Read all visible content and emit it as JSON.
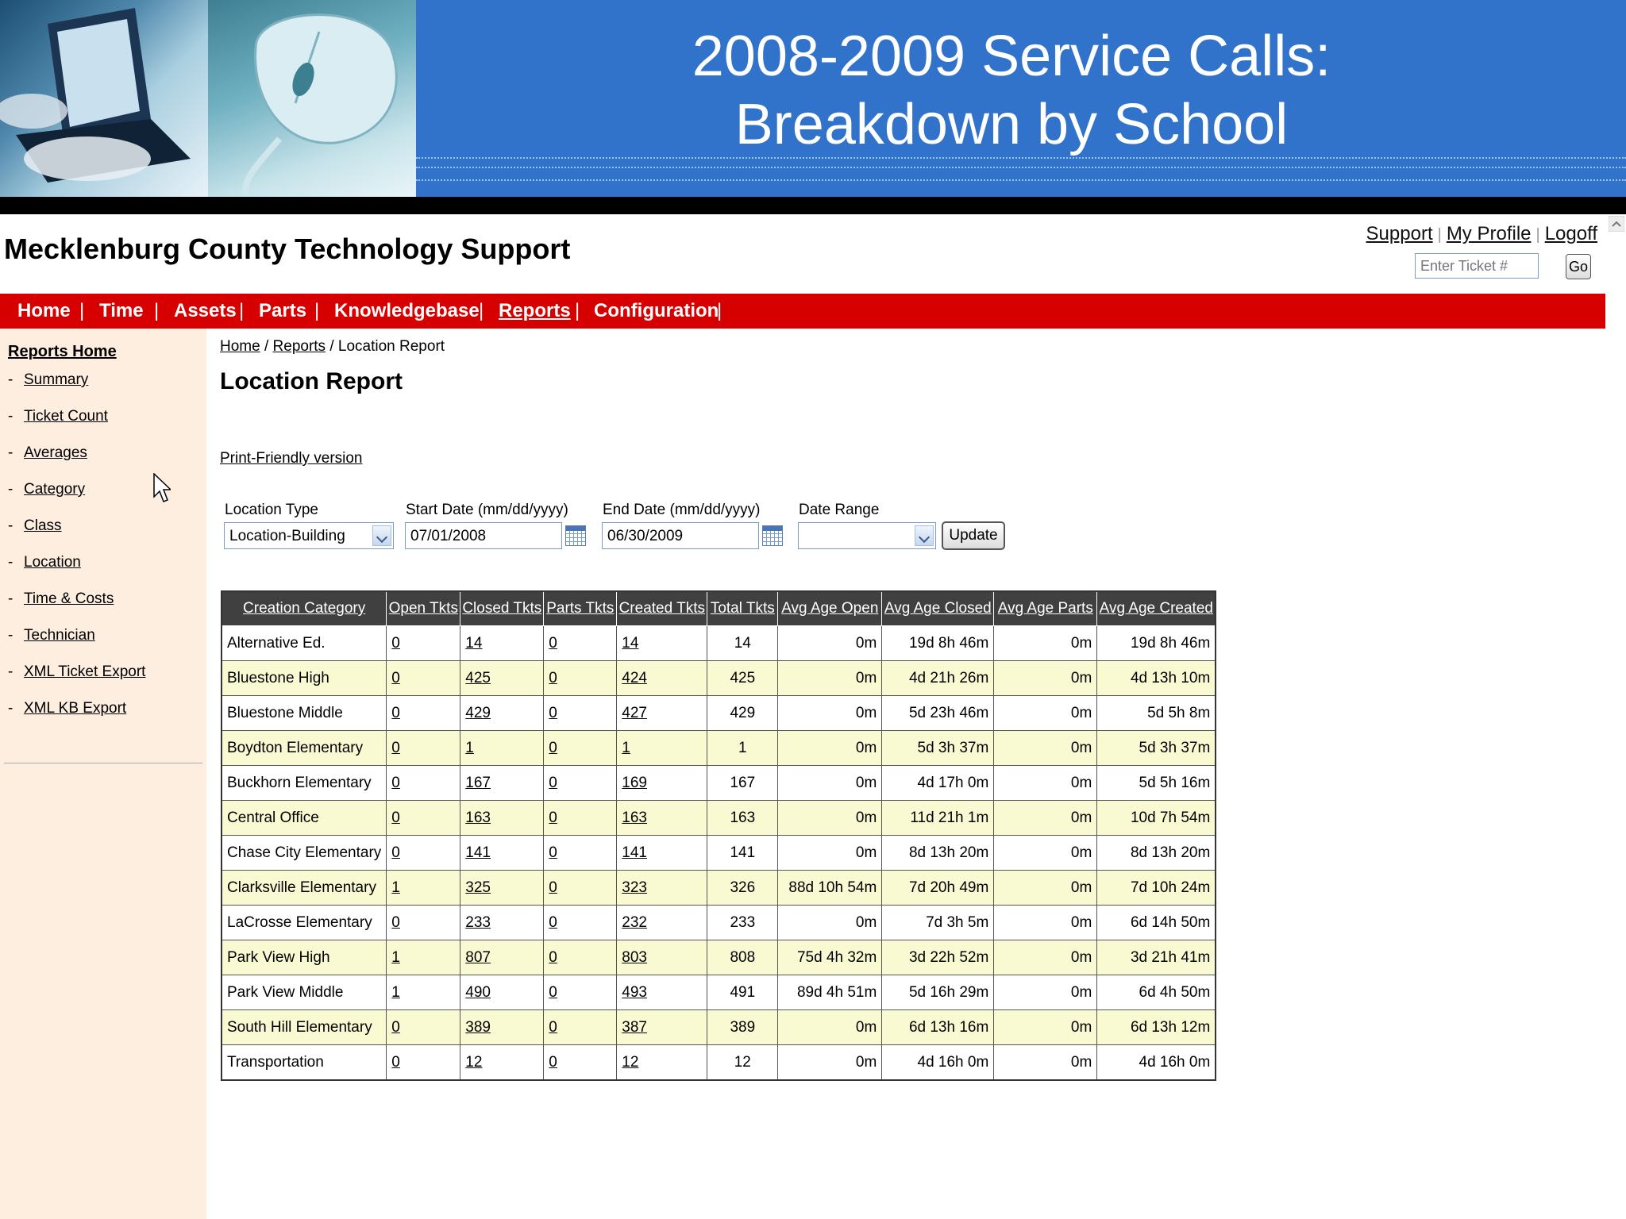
{
  "slide": {
    "title_line1": "2008-2009 Service Calls:",
    "title_line2": "Breakdown by School"
  },
  "app": {
    "title": "Mecklenburg County Technology Support",
    "top_links": [
      "Support",
      "My Profile",
      "Logoff"
    ],
    "ticket_placeholder": "Enter Ticket #",
    "go_label": "Go"
  },
  "nav": {
    "items": [
      "Home",
      "Time",
      "Assets",
      "Parts",
      "Knowledgebase",
      "Reports",
      "Configuration"
    ],
    "active": "Reports"
  },
  "sidebar": {
    "home": "Reports Home",
    "items": [
      "Summary",
      "Ticket Count",
      "Averages",
      "Category",
      "Class",
      "Location",
      "Time & Costs",
      "Technician",
      "XML Ticket Export",
      "XML KB Export"
    ]
  },
  "breadcrumb": {
    "home": "Home",
    "reports": "Reports",
    "current": "Location Report",
    "sep": "/"
  },
  "page": {
    "title": "Location Report",
    "print_link": "Print-Friendly version"
  },
  "filters": {
    "location_type_label": "Location Type",
    "location_type_value": "Location-Building",
    "start_date_label": "Start Date (mm/dd/yyyy)",
    "start_date_value": "07/01/2008",
    "end_date_label": "End Date (mm/dd/yyyy)",
    "end_date_value": "06/30/2009",
    "date_range_label": "Date Range",
    "date_range_value": "",
    "update_label": "Update"
  },
  "table": {
    "headers": [
      "Creation Category",
      "Open Tkts",
      "Closed Tkts",
      "Parts Tkts",
      "Created Tkts",
      "Total Tkts",
      "Avg Age Open",
      "Avg Age Closed",
      "Avg Age Parts",
      "Avg Age Created"
    ],
    "rows": [
      [
        "Alternative Ed.",
        "0",
        "14",
        "0",
        "14",
        "14",
        "0m",
        "19d 8h 46m",
        "0m",
        "19d 8h 46m"
      ],
      [
        "Bluestone High",
        "0",
        "425",
        "0",
        "424",
        "425",
        "0m",
        "4d 21h 26m",
        "0m",
        "4d 13h 10m"
      ],
      [
        "Bluestone Middle",
        "0",
        "429",
        "0",
        "427",
        "429",
        "0m",
        "5d 23h 46m",
        "0m",
        "5d 5h 8m"
      ],
      [
        "Boydton Elementary",
        "0",
        "1",
        "0",
        "1",
        "1",
        "0m",
        "5d 3h 37m",
        "0m",
        "5d 3h 37m"
      ],
      [
        "Buckhorn Elementary",
        "0",
        "167",
        "0",
        "169",
        "167",
        "0m",
        "4d 17h 0m",
        "0m",
        "5d 5h 16m"
      ],
      [
        "Central Office",
        "0",
        "163",
        "0",
        "163",
        "163",
        "0m",
        "11d 21h 1m",
        "0m",
        "10d 7h 54m"
      ],
      [
        "Chase City Elementary",
        "0",
        "141",
        "0",
        "141",
        "141",
        "0m",
        "8d 13h 20m",
        "0m",
        "8d 13h 20m"
      ],
      [
        "Clarksville Elementary",
        "1",
        "325",
        "0",
        "323",
        "326",
        "88d 10h 54m",
        "7d 20h 49m",
        "0m",
        "7d 10h 24m"
      ],
      [
        "LaCrosse Elementary",
        "0",
        "233",
        "0",
        "232",
        "233",
        "0m",
        "7d 3h 5m",
        "0m",
        "6d 14h 50m"
      ],
      [
        "Park View High",
        "1",
        "807",
        "0",
        "803",
        "808",
        "75d 4h 32m",
        "3d 22h 52m",
        "0m",
        "3d 21h 41m"
      ],
      [
        "Park View Middle",
        "1",
        "490",
        "0",
        "493",
        "491",
        "89d 4h 51m",
        "5d 16h 29m",
        "0m",
        "6d 4h 50m"
      ],
      [
        "South Hill Elementary",
        "0",
        "389",
        "0",
        "387",
        "389",
        "0m",
        "6d 13h 16m",
        "0m",
        "6d 13h 12m"
      ],
      [
        "Transportation",
        "0",
        "12",
        "0",
        "12",
        "12",
        "0m",
        "4d 16h 0m",
        "0m",
        "4d 16h 0m"
      ]
    ]
  },
  "icons": {
    "calendar": "calendar-icon",
    "dropdown": "chevron-down-icon",
    "cursor": "mouse-pointer-icon"
  },
  "colors": {
    "banner_blue": "#3173cb",
    "nav_red": "#d70000",
    "sidebar_bg": "#fdeee0",
    "table_header": "#404040",
    "row_alt": "#fafad2"
  }
}
